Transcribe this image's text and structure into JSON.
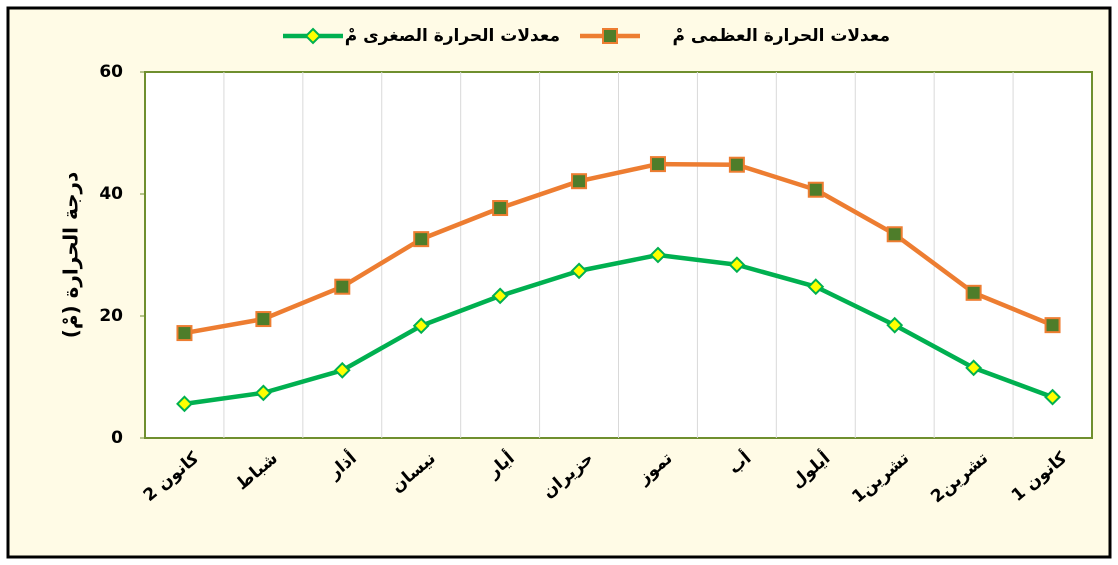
{
  "chart_data": {
    "type": "line",
    "y_axis_label": "درجة الحرارة (مْ)",
    "categories": [
      "كانون 2",
      "شباط",
      "أذار",
      "نيسان",
      "أيار",
      "حزيران",
      "تموز",
      "أب",
      "أيلول",
      "تشرين1",
      "تشرين2",
      "كانون 1"
    ],
    "series": [
      {
        "name": "معدلات الحرارة العظمى مْ",
        "color": "#ed7d31",
        "marker": "square",
        "marker_color": "#4e7d2a",
        "values": [
          17.2,
          19.5,
          24.8,
          32.6,
          37.7,
          42.1,
          44.9,
          44.8,
          40.7,
          33.4,
          23.8,
          18.5
        ]
      },
      {
        "name": "معدلات الحرارة الصغرى مْ",
        "color": "#00b050",
        "marker": "diamond",
        "marker_color": "#ffff00",
        "values": [
          5.6,
          7.4,
          11.1,
          18.4,
          23.3,
          27.4,
          30,
          28.4,
          24.8,
          18.5,
          11.5,
          6.7
        ]
      }
    ],
    "ylim": [
      0,
      60
    ],
    "yticks": [
      0,
      20,
      40,
      60
    ],
    "grid": false,
    "category_dividers": true,
    "legend": "top"
  }
}
